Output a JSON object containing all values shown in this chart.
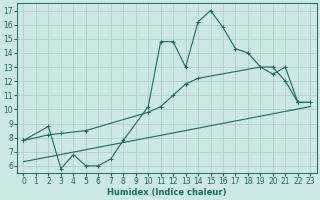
{
  "xlabel": "Humidex (Indice chaleur)",
  "background_color": "#cce8e4",
  "line_color": "#1a6b5e",
  "grid_color": "#aaccc8",
  "xlim": [
    -0.5,
    23.5
  ],
  "ylim": [
    5.5,
    17.5
  ],
  "xticks": [
    0,
    1,
    2,
    3,
    4,
    5,
    6,
    7,
    8,
    9,
    10,
    11,
    12,
    13,
    14,
    15,
    16,
    17,
    18,
    19,
    20,
    21,
    22,
    23
  ],
  "yticks": [
    6,
    7,
    8,
    9,
    10,
    11,
    12,
    13,
    14,
    15,
    16,
    17
  ],
  "series1_x": [
    0,
    2,
    3,
    4,
    5,
    6,
    7,
    8,
    10,
    11,
    12,
    13,
    14,
    15,
    16,
    17,
    18,
    19,
    20,
    21,
    22,
    23
  ],
  "series1_y": [
    7.8,
    8.8,
    5.8,
    6.8,
    6.0,
    6.0,
    6.5,
    7.8,
    10.2,
    14.8,
    14.8,
    13.0,
    16.2,
    17.0,
    15.8,
    14.3,
    14.0,
    13.0,
    13.0,
    12.0,
    10.5,
    10.5
  ],
  "series2_x": [
    0,
    2,
    3,
    5,
    10,
    11,
    12,
    13,
    14,
    19,
    20,
    21,
    22,
    23
  ],
  "series2_y": [
    7.8,
    8.2,
    8.3,
    8.5,
    9.8,
    10.2,
    11.0,
    11.8,
    12.2,
    13.0,
    12.5,
    13.0,
    10.5,
    10.5
  ],
  "series3_x": [
    0,
    23
  ],
  "series3_y": [
    6.3,
    10.2
  ]
}
